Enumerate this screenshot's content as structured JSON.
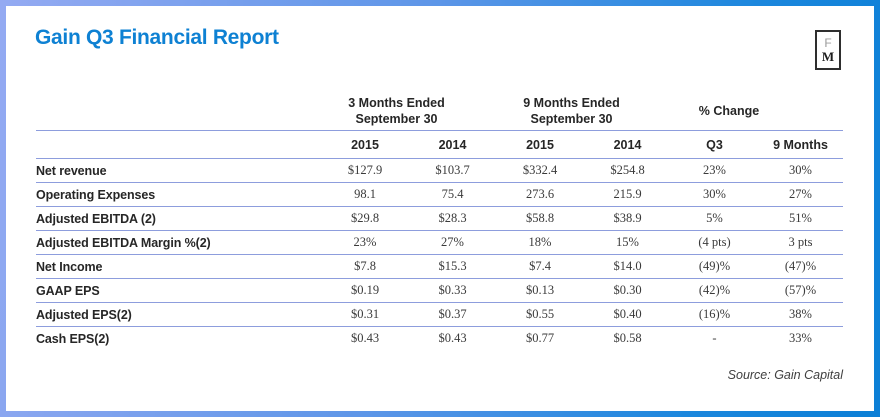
{
  "page": {
    "title": "Gain Q3 Financial Report",
    "source": "Source: Gain Capital",
    "logo": {
      "top": "F",
      "bottom": "M"
    },
    "colors": {
      "accent": "#0e81d3",
      "separator_line": "#8d9ddd",
      "border_gradient_left": "#94aaf2",
      "border_gradient_right": "#0b7fd6"
    }
  },
  "table": {
    "groups": [
      {
        "line1": "3 Months Ended",
        "line2": "September 30"
      },
      {
        "line1": "9 Months Ended",
        "line2": "September 30"
      },
      {
        "line1": "% Change",
        "line2": ""
      }
    ],
    "columns": [
      "2015",
      "2014",
      "2015",
      "2014",
      "Q3",
      "9 Months"
    ],
    "rows": [
      {
        "label": "Net revenue",
        "values": [
          "$127.9",
          "$103.7",
          "$332.4",
          "$254.8",
          "23%",
          "30%"
        ]
      },
      {
        "label": "Operating Expenses",
        "values": [
          "98.1",
          "75.4",
          "273.6",
          "215.9",
          "30%",
          "27%"
        ]
      },
      {
        "label": "Adjusted EBITDA (2)",
        "values": [
          "$29.8",
          "$28.3",
          "$58.8",
          "$38.9",
          "5%",
          "51%"
        ]
      },
      {
        "label": "Adjusted EBITDA Margin %(2)",
        "values": [
          "23%",
          "27%",
          "18%",
          "15%",
          "(4 pts)",
          "3 pts"
        ]
      },
      {
        "label": "Net Income",
        "values": [
          "$7.8",
          "$15.3",
          "$7.4",
          "$14.0",
          "(49)%",
          "(47)%"
        ]
      },
      {
        "label": "GAAP EPS",
        "values": [
          "$0.19",
          "$0.33",
          "$0.13",
          "$0.30",
          "(42)%",
          "(57)%"
        ]
      },
      {
        "label": "Adjusted EPS(2)",
        "values": [
          "$0.31",
          "$0.37",
          "$0.55",
          "$0.40",
          "(16)%",
          "38%"
        ]
      },
      {
        "label": "Cash EPS(2)",
        "values": [
          "$0.43",
          "$0.43",
          "$0.77",
          "$0.58",
          "-",
          "33%"
        ]
      }
    ]
  }
}
